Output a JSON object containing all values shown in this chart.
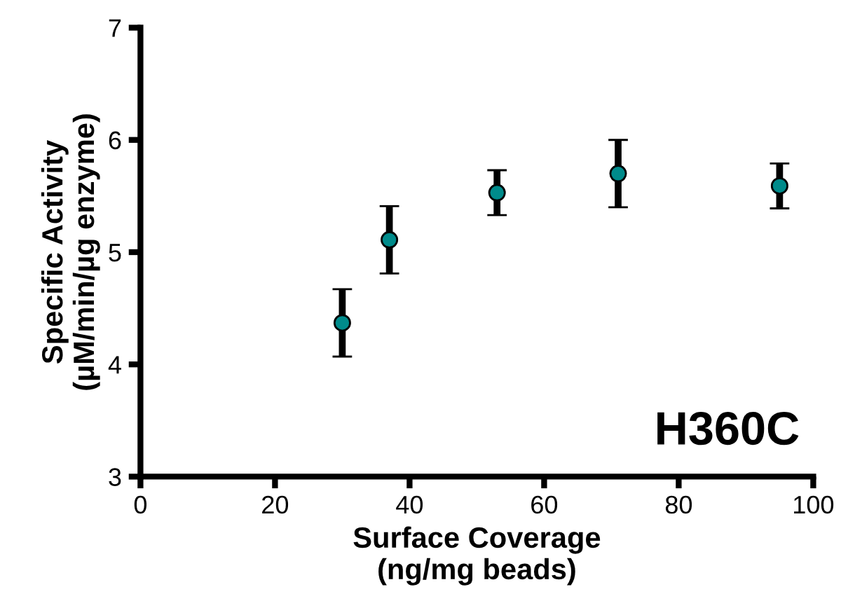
{
  "chart_data": {
    "type": "scatter",
    "xlabel": "Surface Coverage\n(ng/mg beads)",
    "ylabel": "Specific Activity\n(µM/min/µg enzyme)",
    "x": [
      30,
      37,
      53,
      71,
      95
    ],
    "series": [
      {
        "color": "#008b8b",
        "values": [
          4.37,
          5.11,
          5.53,
          5.7,
          5.59
        ],
        "errors": [
          0.3,
          0.3,
          0.2,
          0.3,
          0.2
        ]
      }
    ],
    "xlim": [
      0,
      100
    ],
    "xticks": [
      0,
      20,
      40,
      60,
      80,
      100
    ],
    "ylim": [
      3,
      7
    ],
    "yticks": [
      3,
      4,
      5,
      6,
      7
    ],
    "annotations": [
      "H360C"
    ],
    "marker": "circle",
    "grid": false,
    "legend": false
  }
}
